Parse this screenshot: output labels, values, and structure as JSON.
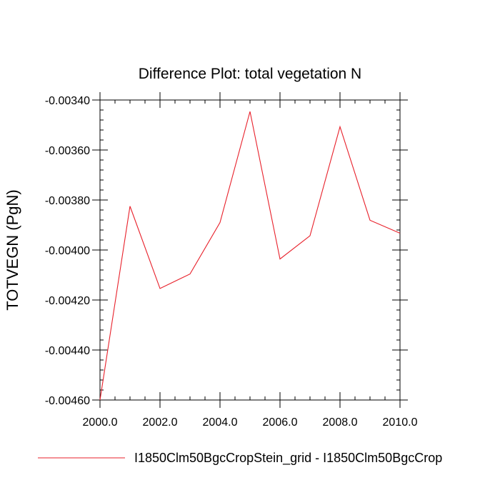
{
  "chart_data": {
    "type": "line",
    "title": "Difference Plot: total vegetation N",
    "xlabel": "",
    "ylabel": "TOTVEGN  (PgN)",
    "xlim": [
      2000.0,
      2010.0
    ],
    "ylim": [
      -0.0046,
      -0.0034
    ],
    "x_ticks": [
      2000.0,
      2002.0,
      2004.0,
      2006.0,
      2008.0,
      2010.0
    ],
    "x_tick_labels": [
      "2000.0",
      "2002.0",
      "2004.0",
      "2006.0",
      "2008.0",
      "2010.0"
    ],
    "y_ticks": [
      -0.0034,
      -0.0036,
      -0.0038,
      -0.004,
      -0.0042,
      -0.0044,
      -0.0046
    ],
    "y_tick_labels": [
      "-0.00340",
      "-0.00360",
      "-0.00380",
      "-0.00400",
      "-0.00420",
      "-0.00440",
      "-0.00460"
    ],
    "grid": false,
    "legend_position": "bottom",
    "series": [
      {
        "name": "I1850Clm50BgcCropStein_grid - I1850Clm50BgcCrop",
        "color": "#e8212b",
        "x": [
          2000,
          2001,
          2002,
          2003,
          2004,
          2005,
          2006,
          2007,
          2008,
          2009,
          2010
        ],
        "values": [
          -0.0046,
          -0.003825,
          -0.004154,
          -0.004096,
          -0.00389,
          -0.003446,
          -0.004036,
          -0.003943,
          -0.003507,
          -0.003881,
          -0.003933
        ]
      }
    ]
  }
}
